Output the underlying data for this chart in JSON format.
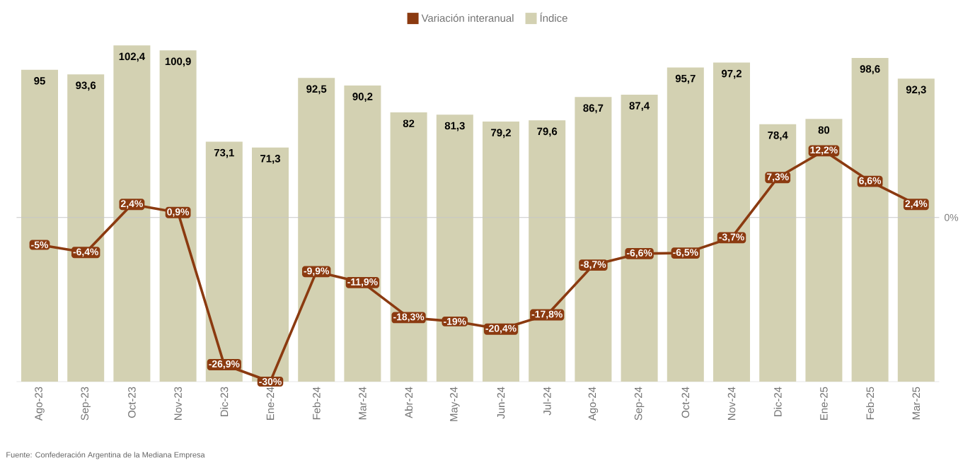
{
  "chart_data": {
    "type": "bar",
    "categories": [
      "Ago-23",
      "Sep-23",
      "Oct-23",
      "Nov-23",
      "Dic-23",
      "Ene-24",
      "Feb-24",
      "Mar-24",
      "Abr-24",
      "May-24",
      "Jun-24",
      "Jul-24",
      "Ago-24",
      "Sep-24",
      "Oct-24",
      "Nov-24",
      "Dic-24",
      "Ene-25",
      "Feb-25",
      "Mar-25"
    ],
    "series": [
      {
        "name": "Variación interanual",
        "type": "line",
        "axis": "y2",
        "color": "#8b3a10",
        "values": [
          -5,
          -6.4,
          2.4,
          0.9,
          -26.9,
          -30,
          -9.9,
          -11.9,
          -18.3,
          -19,
          -20.4,
          -17.8,
          -8.7,
          -6.6,
          -6.5,
          -3.7,
          7.3,
          12.2,
          6.6,
          2.4
        ],
        "value_labels": [
          "-5%",
          "-6,4%",
          "2,4%",
          "0,9%",
          "-26,9%",
          "-30%",
          "-9,9%",
          "-11,9%",
          "-18,3%",
          "-19%",
          "-20,4%",
          "-17,8%",
          "-8,7%",
          "-6,6%",
          "-6,5%",
          "-3,7%",
          "7,3%",
          "12,2%",
          "6,6%",
          "2,4%"
        ]
      },
      {
        "name": "Índice",
        "color": "#d3d1b2",
        "values": [
          95,
          93.6,
          102.4,
          100.9,
          73.1,
          71.3,
          92.5,
          90.2,
          82,
          81.3,
          79.2,
          79.6,
          86.7,
          87.4,
          95.7,
          97.2,
          78.4,
          80,
          98.6,
          92.3
        ],
        "value_labels": [
          "95",
          "93,6",
          "102,4",
          "100,9",
          "73,1",
          "71,3",
          "92,5",
          "90,2",
          "82",
          "81,3",
          "79,2",
          "79,6",
          "86,7",
          "87,4",
          "95,7",
          "97,2",
          "78,4",
          "80",
          "98,6",
          "92,3"
        ]
      }
    ],
    "y2ticks": [
      {
        "value": 0,
        "label": "0%"
      }
    ],
    "tick_labels": "x",
    "ref_lines": [
      {
        "axis": "y2",
        "value": 0
      }
    ],
    "marker": "square",
    "legend": "top",
    "annotations": [
      "Fuente: Confederación Argentina de la Mediana Empresa"
    ]
  }
}
